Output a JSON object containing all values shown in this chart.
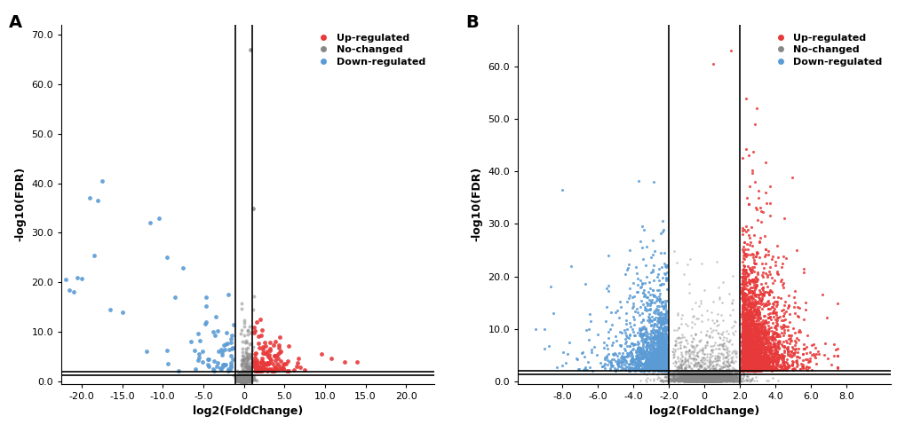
{
  "panel_A": {
    "title_label": "A",
    "xlabel": "log2(FoldChange)",
    "ylabel": "-log10(FDR)",
    "xlim": [
      -22.5,
      23.5
    ],
    "ylim": [
      -0.5,
      72
    ],
    "xticks": [
      -20,
      -15,
      -10,
      -5,
      0,
      5,
      10,
      15,
      20
    ],
    "yticks": [
      0,
      10,
      20,
      30,
      40,
      50,
      60,
      70
    ],
    "vlines": [
      -1,
      1
    ],
    "hlines": [
      1.3,
      2.0
    ],
    "fc_threshold": 1,
    "fdr_threshold": 2.0,
    "up_color": "#E8393A",
    "down_color": "#5B9BD5",
    "grey_color": "#888888",
    "marker_size": 12,
    "marker_size_grey": 8
  },
  "panel_B": {
    "title_label": "B",
    "xlabel": "log2(FoldChange)",
    "ylabel": "-log10(FDR)",
    "xlim": [
      -10.5,
      10.5
    ],
    "ylim": [
      -0.5,
      68
    ],
    "xticks": [
      -8,
      -6,
      -4,
      -2,
      0,
      2,
      4,
      6,
      8
    ],
    "yticks": [
      0,
      10,
      20,
      30,
      40,
      50,
      60
    ],
    "vlines": [
      -2,
      2
    ],
    "hlines": [
      1.3,
      2.0
    ],
    "fc_threshold": 2,
    "fdr_threshold": 2.0,
    "up_color": "#E8393A",
    "down_color": "#5B9BD5",
    "grey_color": "#888888",
    "marker_size": 5,
    "marker_size_grey": 3
  },
  "legend_labels": [
    "Up-regulated",
    "No-changed",
    "Down-regulated"
  ],
  "legend_colors": [
    "#E8393A",
    "#888888",
    "#5B9BD5"
  ],
  "fig_bg": "#FFFFFF"
}
